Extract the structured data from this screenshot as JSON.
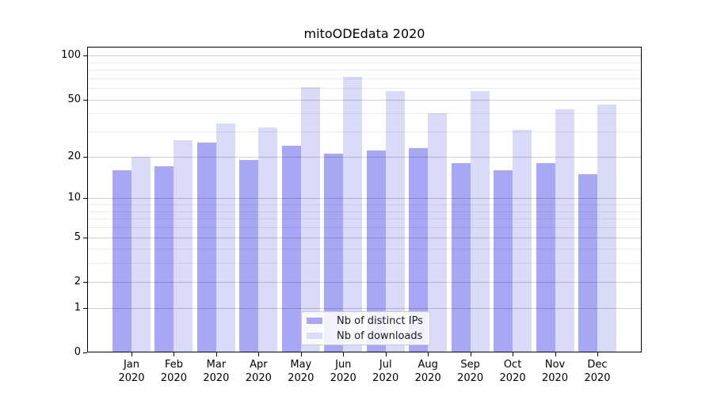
{
  "title": "mitoODEdata 2020",
  "legend": {
    "items": [
      {
        "label": "Nb of distinct IPs",
        "color": "#a7a7f5"
      },
      {
        "label": "Nb of downloads",
        "color": "#dadaf9"
      }
    ]
  },
  "chart_data": {
    "type": "bar",
    "title": "mitoODEdata 2020",
    "categories": [
      "Jan",
      "Feb",
      "Mar",
      "Apr",
      "May",
      "Jun",
      "Jul",
      "Aug",
      "Sep",
      "Oct",
      "Nov",
      "Dec"
    ],
    "year_label": "2020",
    "series": [
      {
        "name": "Nb of distinct IPs",
        "color": "#a7a7f5",
        "values": [
          16,
          17,
          25,
          19,
          24,
          21,
          22,
          23,
          18,
          16,
          18,
          15
        ]
      },
      {
        "name": "Nb of downloads",
        "color": "#dadaf9",
        "values": [
          20,
          26,
          34,
          32,
          61,
          72,
          57,
          40,
          57,
          31,
          43,
          46
        ]
      }
    ],
    "xlabel": "",
    "ylabel": "",
    "yscale": "log1p",
    "yticks": [
      0,
      1,
      2,
      5,
      10,
      20,
      50,
      100
    ],
    "minor_yticks": [
      3,
      4,
      6,
      7,
      8,
      9,
      30,
      40,
      60,
      70,
      80,
      90
    ],
    "ylim": [
      0,
      115
    ],
    "grid": true,
    "legend_position": "lower center"
  }
}
